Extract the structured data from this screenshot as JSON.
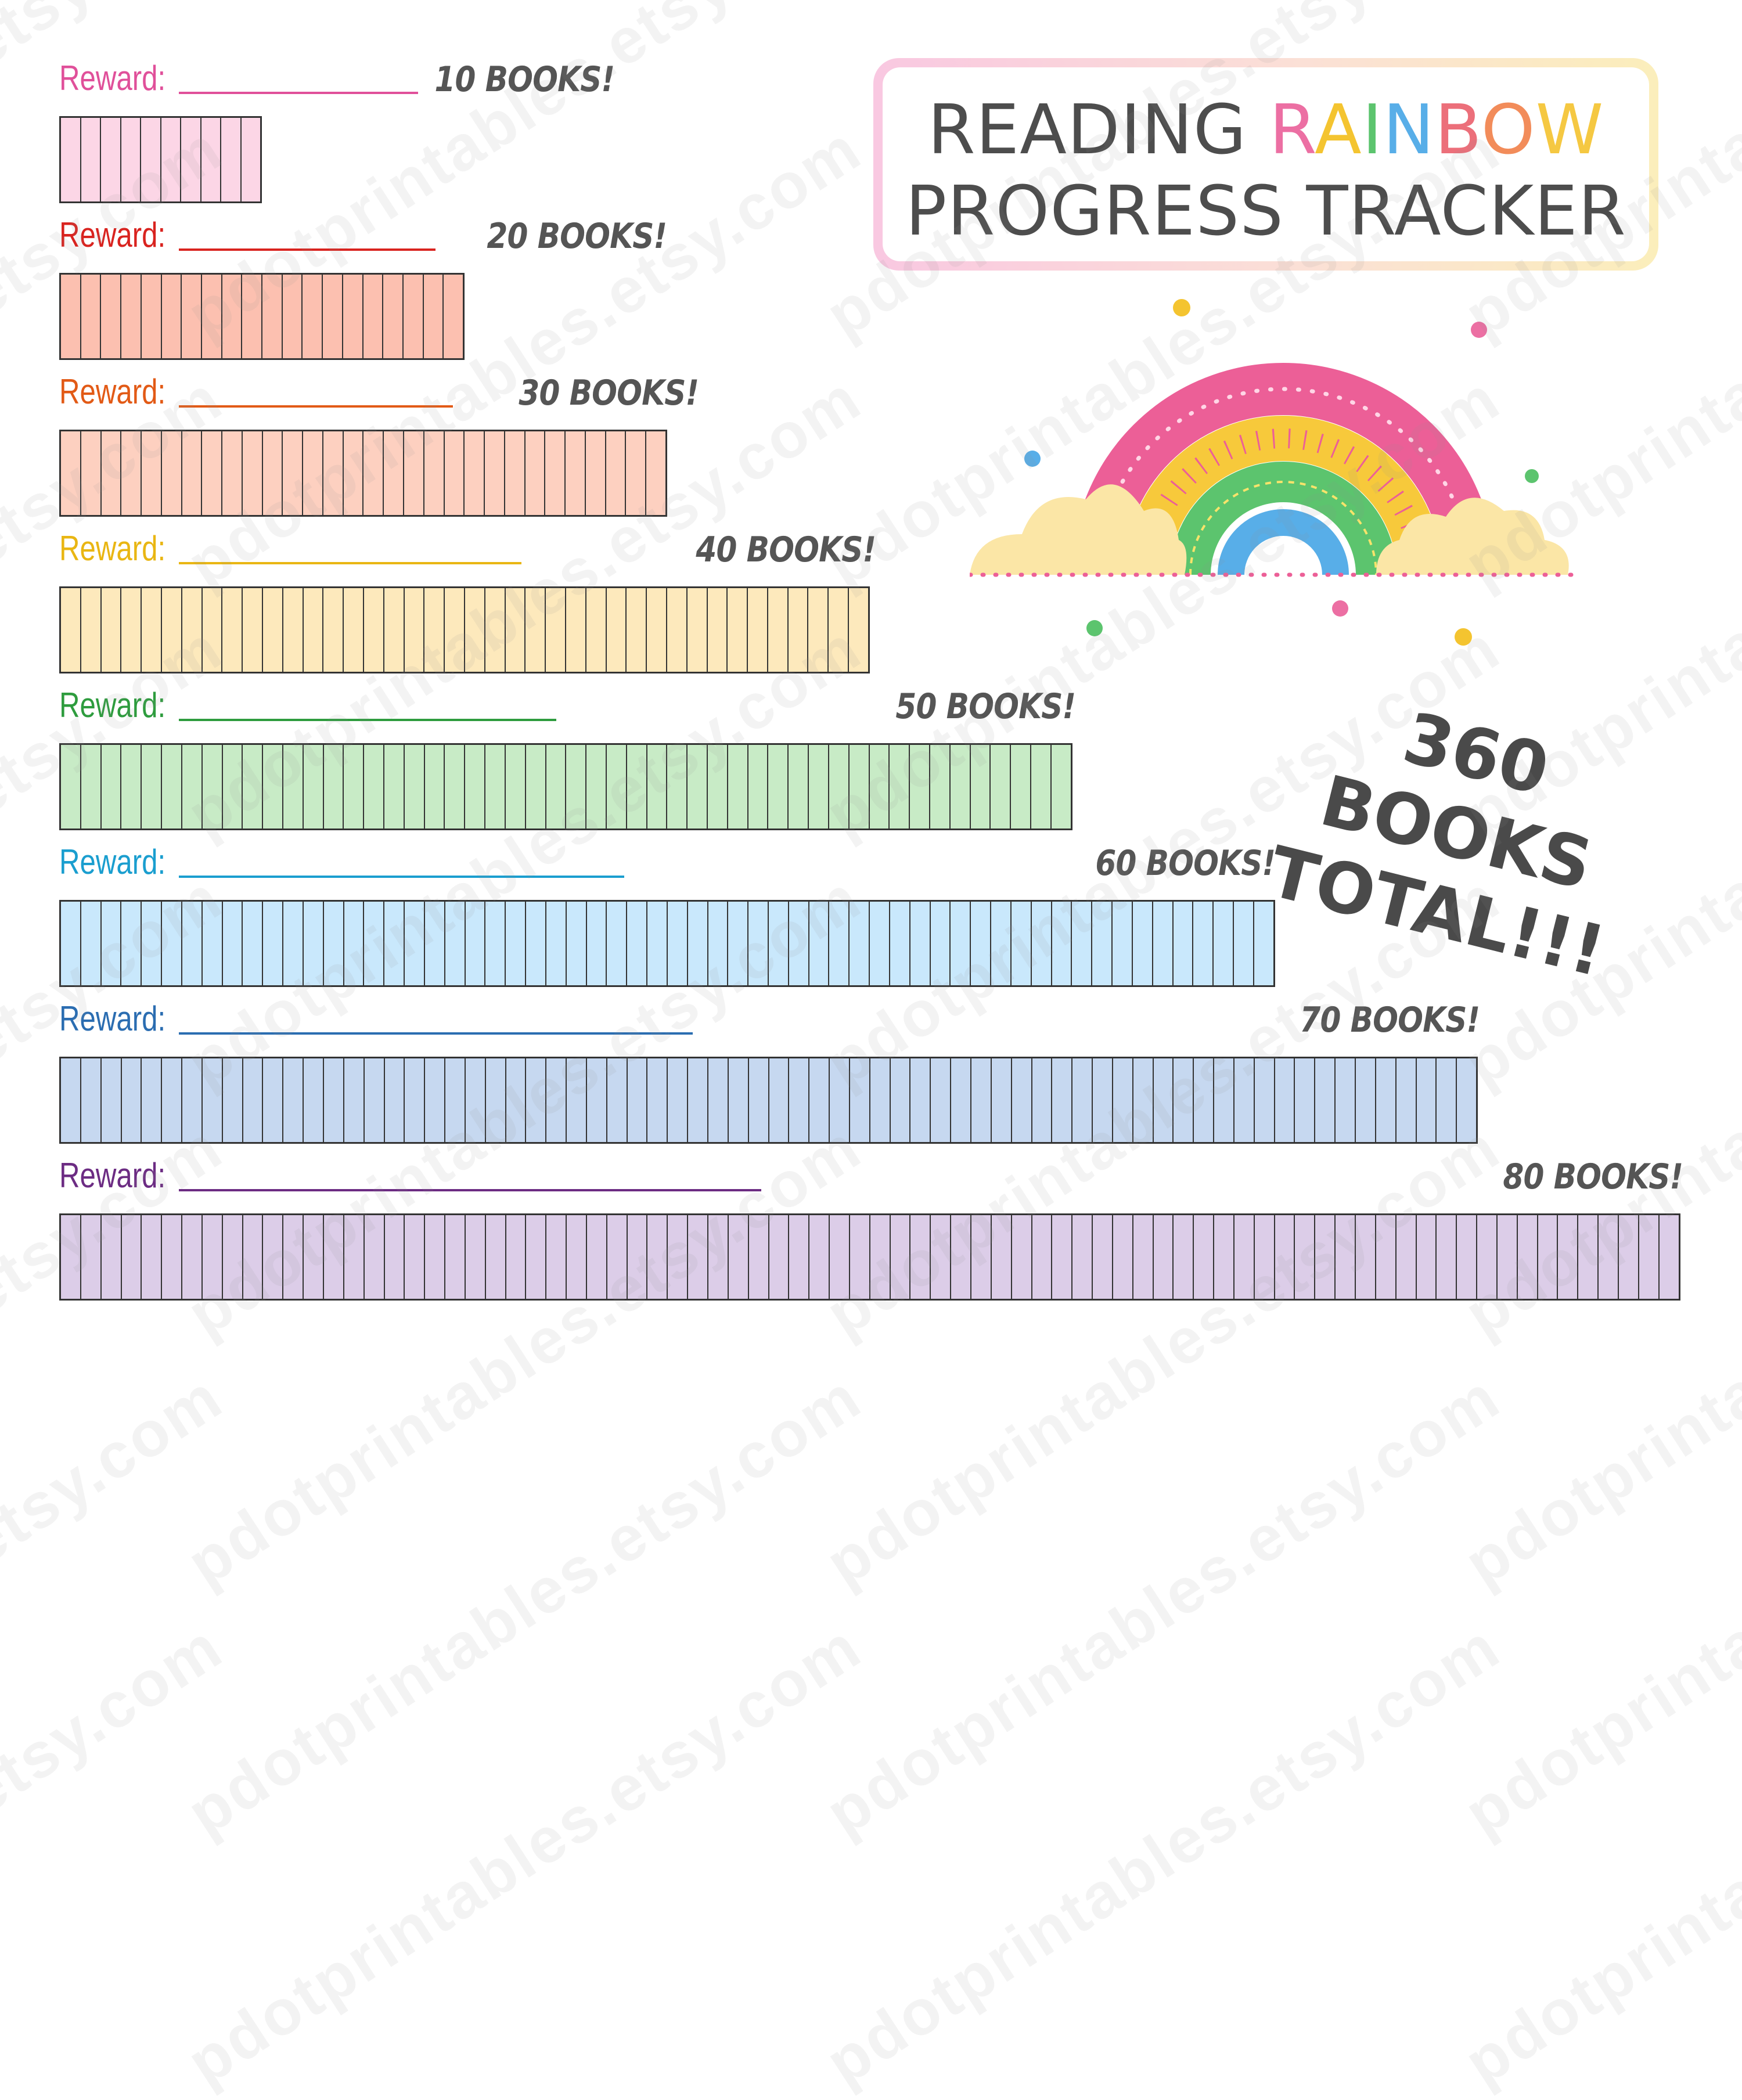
{
  "title": {
    "word_reading": "READING",
    "letters_rainbow": [
      {
        "ch": "R",
        "color": "#ec6fa3"
      },
      {
        "ch": "A",
        "color": "#f4c430"
      },
      {
        "ch": "I",
        "color": "#5cc46e"
      },
      {
        "ch": "N",
        "color": "#58aee8"
      },
      {
        "ch": "B",
        "color": "#ec6f7a"
      },
      {
        "ch": "O",
        "color": "#f28c5a"
      },
      {
        "ch": "W",
        "color": "#f5c842"
      }
    ],
    "line2": "PROGRESS TRACKER"
  },
  "total_line1": "360 BOOKS",
  "total_line2": "TOTAL!!!",
  "reward_prefix": "Reward:",
  "rows": [
    {
      "reward_label": "Reward:",
      "goal": "10 BOOKS!",
      "books": 10,
      "label_color": "#e0509a",
      "fill": "#fcd6e6"
    },
    {
      "reward_label": "Reward:",
      "goal": "20 BOOKS!",
      "books": 20,
      "label_color": "#d9231f",
      "fill": "#fcc0b0"
    },
    {
      "reward_label": "Reward:",
      "goal": "30 BOOKS!",
      "books": 30,
      "label_color": "#e25a16",
      "fill": "#fdd0c0"
    },
    {
      "reward_label": "Reward:",
      "goal": "40 BOOKS!",
      "books": 40,
      "label_color": "#e9b613",
      "fill": "#fde9bc"
    },
    {
      "reward_label": "Reward:",
      "goal": "50 BOOKS!",
      "books": 50,
      "label_color": "#2e9c3e",
      "fill": "#c8ebc6"
    },
    {
      "reward_label": "Reward:",
      "goal": "60 BOOKS!",
      "books": 60,
      "label_color": "#1a9ecf",
      "fill": "#c9e8fc"
    },
    {
      "reward_label": "Reward:",
      "goal": "70 BOOKS!",
      "books": 70,
      "label_color": "#2b6db1",
      "fill": "#c6d8f0"
    },
    {
      "reward_label": "Reward:",
      "goal": "80 BOOKS!",
      "books": 80,
      "label_color": "#6c2c83",
      "fill": "#dccde8"
    }
  ],
  "watermark": "pdotprintables.etsy.com",
  "colors": {
    "text_dark": "#4d4d4d",
    "grid_line": "#333333"
  }
}
